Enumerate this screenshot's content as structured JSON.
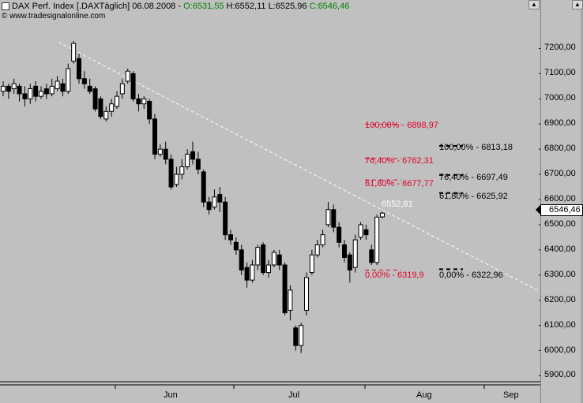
{
  "header": {
    "symbol": "DAX Perf. Index [.DAX",
    "period": "Täglich]",
    "date": "06.08.2008",
    "sep": "-",
    "open": "O:6531,55",
    "high": "H:6552,11",
    "low": "L:6525,96",
    "close": "C:6546,46"
  },
  "watermark": "© www.tradesignalonline.com",
  "current_price": "6546,46",
  "trendline_label": "6552,61",
  "fib_red": [
    {
      "label": "100,00% - 6898,97"
    },
    {
      "label": "76,40% - 6762,31"
    },
    {
      "label": "61,80% - 6677,77"
    },
    {
      "label": "0,00% - 6319,9"
    }
  ],
  "fib_black": [
    {
      "label": "100,00% - 6813,18"
    },
    {
      "label": "76,40% - 6697,49"
    },
    {
      "label": "61,80% - 6625,92"
    },
    {
      "label": "0,00% - 6322,96"
    }
  ],
  "colors": {
    "background": "#c0c0c0",
    "fib_red": "#e0002a",
    "up_candle": "#ffffff",
    "down_candle": "#000000",
    "trendline": "#ffffff"
  },
  "chart_data": {
    "type": "candlestick",
    "y_ticks": [
      "7200,00",
      "7100,00",
      "7000,00",
      "6900,00",
      "6800,00",
      "6700,00",
      "6600,00",
      "6500,00",
      "6400,00",
      "6300,00",
      "6200,00",
      "6100,00",
      "6000,00",
      "5900,00"
    ],
    "x_ticks": [
      "Jun",
      "Jul",
      "Aug",
      "Sep"
    ],
    "ylim": [
      5870,
      7330
    ],
    "candles": [
      {
        "o": 7030,
        "c": 7050,
        "h": 7070,
        "l": 7010
      },
      {
        "o": 7050,
        "c": 7030,
        "h": 7060,
        "l": 7000
      },
      {
        "o": 7040,
        "c": 7060,
        "h": 7080,
        "l": 7020
      },
      {
        "o": 7050,
        "c": 7020,
        "h": 7060,
        "l": 6990
      },
      {
        "o": 7020,
        "c": 7000,
        "h": 7050,
        "l": 6970
      },
      {
        "o": 7000,
        "c": 7040,
        "h": 7060,
        "l": 6980
      },
      {
        "o": 7050,
        "c": 7010,
        "h": 7070,
        "l": 6990
      },
      {
        "o": 7010,
        "c": 7030,
        "h": 7050,
        "l": 7000
      },
      {
        "o": 7040,
        "c": 7020,
        "h": 7060,
        "l": 7000
      },
      {
        "o": 7020,
        "c": 7050,
        "h": 7080,
        "l": 7010
      },
      {
        "o": 7040,
        "c": 7070,
        "h": 7090,
        "l": 7030
      },
      {
        "o": 7060,
        "c": 7030,
        "h": 7080,
        "l": 7010
      },
      {
        "o": 7030,
        "c": 7120,
        "h": 7140,
        "l": 7020
      },
      {
        "o": 7150,
        "c": 7220,
        "h": 7230,
        "l": 7140
      },
      {
        "o": 7160,
        "c": 7080,
        "h": 7180,
        "l": 7060
      },
      {
        "o": 7080,
        "c": 7060,
        "h": 7110,
        "l": 7040
      },
      {
        "o": 7050,
        "c": 7030,
        "h": 7080,
        "l": 7020
      },
      {
        "o": 7040,
        "c": 6960,
        "h": 7050,
        "l": 6950
      },
      {
        "o": 7000,
        "c": 6930,
        "h": 7010,
        "l": 6920
      },
      {
        "o": 6920,
        "c": 6950,
        "h": 6970,
        "l": 6910
      },
      {
        "o": 6950,
        "c": 6980,
        "h": 7000,
        "l": 6930
      },
      {
        "o": 6970,
        "c": 7010,
        "h": 7030,
        "l": 6960
      },
      {
        "o": 7020,
        "c": 7060,
        "h": 7080,
        "l": 7000
      },
      {
        "o": 7070,
        "c": 7110,
        "h": 7120,
        "l": 7060
      },
      {
        "o": 7100,
        "c": 7000,
        "h": 7110,
        "l": 6990
      },
      {
        "o": 7000,
        "c": 6980,
        "h": 7020,
        "l": 6950
      },
      {
        "o": 6980,
        "c": 7000,
        "h": 7010,
        "l": 6960
      },
      {
        "o": 6990,
        "c": 6920,
        "h": 7000,
        "l": 6900
      },
      {
        "o": 6920,
        "c": 6780,
        "h": 6940,
        "l": 6760
      },
      {
        "o": 6780,
        "c": 6800,
        "h": 6820,
        "l": 6770
      },
      {
        "o": 6800,
        "c": 6760,
        "h": 6830,
        "l": 6740
      },
      {
        "o": 6760,
        "c": 6650,
        "h": 6780,
        "l": 6640
      },
      {
        "o": 6660,
        "c": 6700,
        "h": 6730,
        "l": 6650
      },
      {
        "o": 6700,
        "c": 6730,
        "h": 6760,
        "l": 6680
      },
      {
        "o": 6730,
        "c": 6780,
        "h": 6800,
        "l": 6720
      },
      {
        "o": 6790,
        "c": 6760,
        "h": 6830,
        "l": 6740
      },
      {
        "o": 6760,
        "c": 6720,
        "h": 6790,
        "l": 6700
      },
      {
        "o": 6710,
        "c": 6590,
        "h": 6720,
        "l": 6570
      },
      {
        "o": 6590,
        "c": 6560,
        "h": 6610,
        "l": 6540
      },
      {
        "o": 6570,
        "c": 6610,
        "h": 6640,
        "l": 6560
      },
      {
        "o": 6620,
        "c": 6590,
        "h": 6650,
        "l": 6550
      },
      {
        "o": 6590,
        "c": 6460,
        "h": 6610,
        "l": 6440
      },
      {
        "o": 6460,
        "c": 6440,
        "h": 6480,
        "l": 6420
      },
      {
        "o": 6430,
        "c": 6400,
        "h": 6450,
        "l": 6380
      },
      {
        "o": 6400,
        "c": 6320,
        "h": 6420,
        "l": 6300
      },
      {
        "o": 6330,
        "c": 6280,
        "h": 6350,
        "l": 6250
      },
      {
        "o": 6280,
        "c": 6340,
        "h": 6360,
        "l": 6270
      },
      {
        "o": 6340,
        "c": 6410,
        "h": 6420,
        "l": 6320
      },
      {
        "o": 6420,
        "c": 6310,
        "h": 6430,
        "l": 6300
      },
      {
        "o": 6310,
        "c": 6340,
        "h": 6360,
        "l": 6290
      },
      {
        "o": 6340,
        "c": 6390,
        "h": 6400,
        "l": 6330
      },
      {
        "o": 6380,
        "c": 6340,
        "h": 6400,
        "l": 6320
      },
      {
        "o": 6340,
        "c": 6150,
        "h": 6350,
        "l": 6140
      },
      {
        "o": 6160,
        "c": 6240,
        "h": 6260,
        "l": 6120
      },
      {
        "o": 6090,
        "c": 6020,
        "h": 6100,
        "l": 6000
      },
      {
        "o": 6020,
        "c": 6100,
        "h": 6110,
        "l": 5990
      },
      {
        "o": 6160,
        "c": 6290,
        "h": 6310,
        "l": 6140
      },
      {
        "o": 6310,
        "c": 6380,
        "h": 6400,
        "l": 6300
      },
      {
        "o": 6380,
        "c": 6420,
        "h": 6440,
        "l": 6370
      },
      {
        "o": 6420,
        "c": 6460,
        "h": 6480,
        "l": 6410
      },
      {
        "o": 6500,
        "c": 6560,
        "h": 6590,
        "l": 6490
      },
      {
        "o": 6560,
        "c": 6490,
        "h": 6580,
        "l": 6470
      },
      {
        "o": 6490,
        "c": 6430,
        "h": 6510,
        "l": 6410
      },
      {
        "o": 6420,
        "c": 6370,
        "h": 6440,
        "l": 6350
      },
      {
        "o": 6380,
        "c": 6320,
        "h": 6390,
        "l": 6270
      },
      {
        "o": 6330,
        "c": 6440,
        "h": 6460,
        "l": 6310
      },
      {
        "o": 6450,
        "c": 6500,
        "h": 6510,
        "l": 6440
      },
      {
        "o": 6480,
        "c": 6460,
        "h": 6500,
        "l": 6440
      },
      {
        "o": 6400,
        "c": 6350,
        "h": 6420,
        "l": 6340
      },
      {
        "o": 6350,
        "c": 6530,
        "h": 6540,
        "l": 6340
      },
      {
        "o": 6531,
        "c": 6546,
        "h": 6552,
        "l": 6525
      }
    ]
  }
}
